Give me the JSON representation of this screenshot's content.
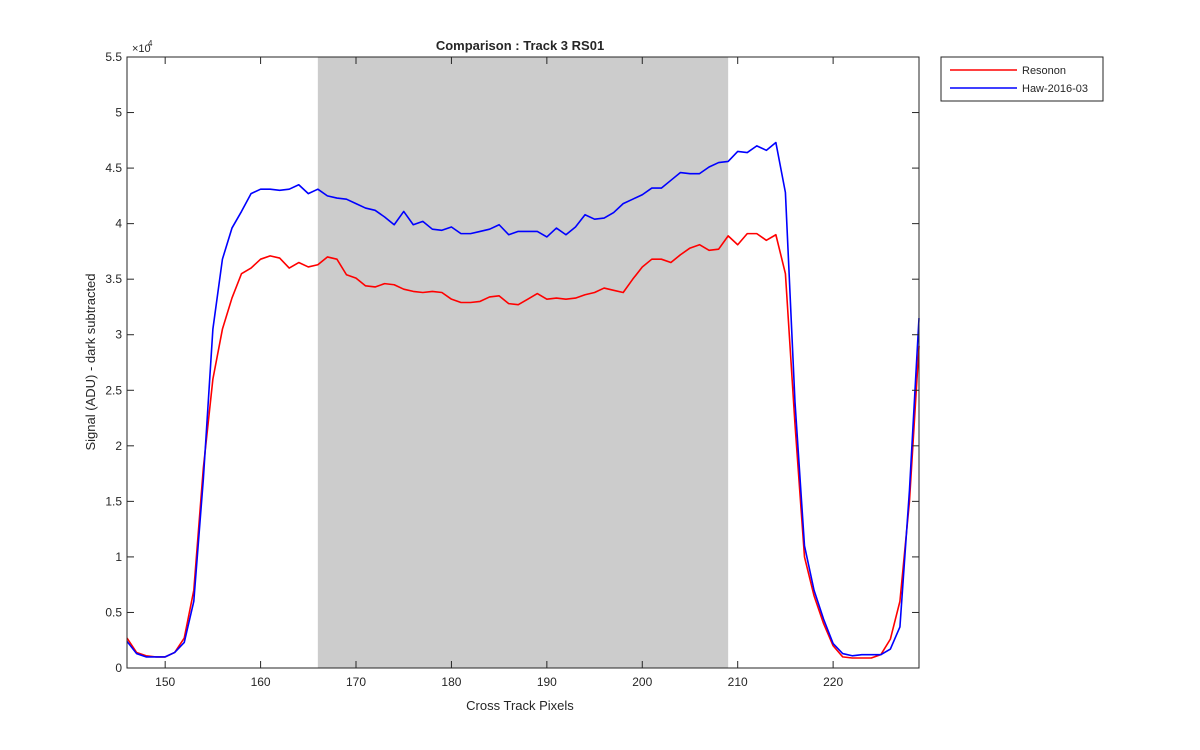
{
  "chart_data": {
    "type": "line",
    "title": "Comparison : Track 3  RS01",
    "xlabel": "Cross Track Pixels",
    "ylabel": "Signal (ADU) - dark subtracted",
    "y_exponent_label": "×10",
    "y_exponent_power": "4",
    "xlim": [
      146,
      229
    ],
    "ylim": [
      0,
      5.5
    ],
    "x_ticks": [
      150,
      160,
      170,
      180,
      190,
      200,
      210,
      220
    ],
    "y_ticks": [
      0,
      0.5,
      1,
      1.5,
      2,
      2.5,
      3,
      3.5,
      4,
      4.5,
      5,
      5.5
    ],
    "y_tick_labels": [
      "0",
      "0.5",
      "1",
      "1.5",
      "2",
      "2.5",
      "3",
      "3.5",
      "4",
      "4.5",
      "5",
      "5.5"
    ],
    "shaded_region": {
      "x": [
        166,
        209
      ],
      "color": "#cccccc"
    },
    "legend_position": "outside-top-right",
    "grid": false,
    "x": [
      146,
      147,
      148,
      149,
      150,
      151,
      152,
      153,
      154,
      155,
      156,
      157,
      158,
      159,
      160,
      161,
      162,
      163,
      164,
      165,
      166,
      167,
      168,
      169,
      170,
      171,
      172,
      173,
      174,
      175,
      176,
      177,
      178,
      179,
      180,
      181,
      182,
      183,
      184,
      185,
      186,
      187,
      188,
      189,
      190,
      191,
      192,
      193,
      194,
      195,
      196,
      197,
      198,
      199,
      200,
      201,
      202,
      203,
      204,
      205,
      206,
      207,
      208,
      209,
      210,
      211,
      212,
      213,
      214,
      215,
      216,
      217,
      218,
      219,
      220,
      221,
      222,
      223,
      224,
      225,
      226,
      227,
      228,
      229
    ],
    "series": [
      {
        "name": "Resonon",
        "color": "#ff0000",
        "values": [
          0.27,
          0.14,
          0.11,
          0.1,
          0.1,
          0.14,
          0.27,
          0.7,
          1.8,
          2.6,
          3.05,
          3.33,
          3.55,
          3.6,
          3.68,
          3.71,
          3.69,
          3.6,
          3.65,
          3.61,
          3.63,
          3.7,
          3.68,
          3.54,
          3.51,
          3.44,
          3.43,
          3.46,
          3.45,
          3.41,
          3.39,
          3.38,
          3.39,
          3.38,
          3.32,
          3.29,
          3.29,
          3.3,
          3.34,
          3.35,
          3.28,
          3.27,
          3.32,
          3.37,
          3.32,
          3.33,
          3.32,
          3.33,
          3.36,
          3.38,
          3.42,
          3.4,
          3.38,
          3.5,
          3.61,
          3.68,
          3.68,
          3.65,
          3.72,
          3.78,
          3.81,
          3.76,
          3.77,
          3.89,
          3.81,
          3.91,
          3.91,
          3.85,
          3.9,
          3.55,
          2.2,
          1.0,
          0.65,
          0.4,
          0.2,
          0.1,
          0.09,
          0.09,
          0.09,
          0.12,
          0.26,
          0.6,
          1.5,
          2.9
        ]
      },
      {
        "name": "Haw-2016-03",
        "color": "#0000ff",
        "values": [
          0.24,
          0.13,
          0.1,
          0.1,
          0.1,
          0.14,
          0.23,
          0.6,
          1.7,
          3.05,
          3.68,
          3.96,
          4.11,
          4.27,
          4.31,
          4.31,
          4.3,
          4.31,
          4.35,
          4.27,
          4.31,
          4.25,
          4.23,
          4.22,
          4.18,
          4.14,
          4.12,
          4.06,
          3.99,
          4.11,
          3.99,
          4.02,
          3.95,
          3.94,
          3.97,
          3.91,
          3.91,
          3.93,
          3.95,
          3.99,
          3.9,
          3.93,
          3.93,
          3.93,
          3.88,
          3.96,
          3.9,
          3.97,
          4.08,
          4.04,
          4.05,
          4.1,
          4.18,
          4.22,
          4.26,
          4.32,
          4.32,
          4.39,
          4.46,
          4.45,
          4.45,
          4.51,
          4.55,
          4.56,
          4.65,
          4.64,
          4.7,
          4.66,
          4.73,
          4.28,
          2.4,
          1.1,
          0.7,
          0.44,
          0.22,
          0.13,
          0.11,
          0.12,
          0.12,
          0.12,
          0.17,
          0.37,
          1.6,
          3.15
        ]
      }
    ]
  }
}
